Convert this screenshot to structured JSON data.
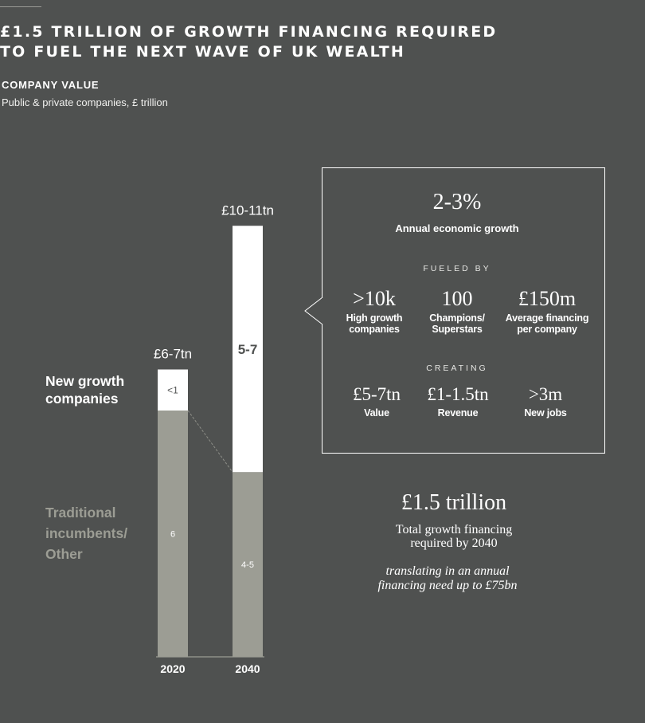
{
  "header": {
    "title_line1": "£1.5 TRILLION OF GROWTH FINANCING REQUIRED",
    "title_line2": "TO FUEL THE NEXT WAVE OF UK WEALTH",
    "subtitle_label": "COMPANY VALUE",
    "subtitle_desc": "Public & private companies, £ trillion"
  },
  "colors": {
    "background": "#4f5150",
    "new_growth": "#ffffff",
    "traditional": "#9c9d94"
  },
  "chart_data": {
    "type": "bar",
    "stacked": true,
    "title": "COMPANY VALUE",
    "ylabel": "Public & private companies, £ trillion",
    "categories": [
      "2020",
      "2040"
    ],
    "totals": [
      "£6-7tn",
      "£10-11tn"
    ],
    "series": [
      {
        "name": "Traditional incumbents/ Other",
        "values": [
          6,
          4.5
        ],
        "labels": [
          "6",
          "4-5"
        ]
      },
      {
        "name": "New growth companies",
        "values": [
          1,
          6
        ],
        "labels": [
          "<1",
          "5-7"
        ]
      }
    ]
  },
  "legend": {
    "new_growth_line1": "New growth",
    "new_growth_line2": "companies",
    "traditional_line1": "Traditional",
    "traditional_line2": "incumbents/",
    "traditional_line3": "Other"
  },
  "callout": {
    "growth_value": "2-3%",
    "growth_label": "Annual economic growth",
    "fueled_label": "FUELED BY",
    "fueled": [
      {
        "value": ">10k",
        "label_line1": "High growth",
        "label_line2": "companies"
      },
      {
        "value": "100",
        "label_line1": "Champions/",
        "label_line2": "Superstars"
      },
      {
        "value": "£150m",
        "label_line1": "Average financing",
        "label_line2": "per company"
      }
    ],
    "creating_label": "CREATING",
    "creating": [
      {
        "value": "£5-7tn",
        "label": "Value"
      },
      {
        "value": "£1-1.5tn",
        "label": "Revenue"
      },
      {
        "value": ">3m",
        "label": "New jobs"
      }
    ]
  },
  "total": {
    "value": "£1.5 trillion",
    "desc_line1": "Total growth financing",
    "desc_line2": "required by 2040",
    "note_line1": "translating in an annual",
    "note_line2": "financing need up to £75bn"
  }
}
